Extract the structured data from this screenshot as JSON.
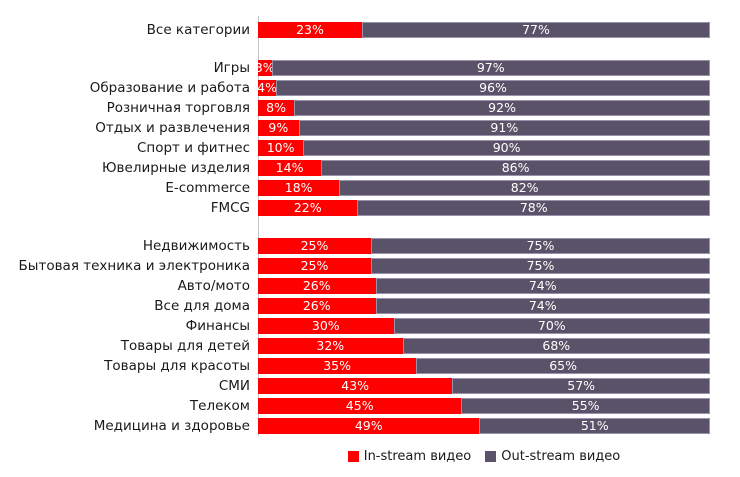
{
  "chart_data": {
    "type": "bar",
    "orientation": "horizontal",
    "stacked": true,
    "unit": "%",
    "x_range": [
      0,
      100
    ],
    "grid": false,
    "legend_position": "bottom-center",
    "colors": {
      "in_stream": "#ff0000",
      "out_stream": "#5a5268",
      "axis_line": "#c6c6c6",
      "label_text": "#1a1a1a",
      "value_text": "#ffffff"
    },
    "series_names": [
      "In-stream видео",
      "Out-stream видео"
    ],
    "groups": [
      {
        "rows": [
          {
            "label": "Все категории",
            "in": 23,
            "out": 77
          }
        ]
      },
      {
        "rows": [
          {
            "label": "Игры",
            "in": 3,
            "out": 97
          },
          {
            "label": "Образование и работа",
            "in": 4,
            "out": 96
          },
          {
            "label": "Розничная торговля",
            "in": 8,
            "out": 92
          },
          {
            "label": "Отдых и развлечения",
            "in": 9,
            "out": 91
          },
          {
            "label": "Спорт и фитнес",
            "in": 10,
            "out": 90
          },
          {
            "label": "Ювелирные изделия",
            "in": 14,
            "out": 86
          },
          {
            "label": "E-commerce",
            "in": 18,
            "out": 82
          },
          {
            "label": "FMCG",
            "in": 22,
            "out": 78
          }
        ]
      },
      {
        "rows": [
          {
            "label": "Недвижимость",
            "in": 25,
            "out": 75
          },
          {
            "label": "Бытовая техника и электроника",
            "in": 25,
            "out": 75
          },
          {
            "label": "Авто/мото",
            "in": 26,
            "out": 74
          },
          {
            "label": "Все для дома",
            "in": 26,
            "out": 74
          },
          {
            "label": "Финансы",
            "in": 30,
            "out": 70
          },
          {
            "label": "Товары для детей",
            "in": 32,
            "out": 68
          },
          {
            "label": "Товары для красоты",
            "in": 35,
            "out": 65
          },
          {
            "label": "СМИ",
            "in": 43,
            "out": 57
          },
          {
            "label": "Телеком",
            "in": 45,
            "out": 55
          },
          {
            "label": "Медицина и здоровье",
            "in": 49,
            "out": 51
          }
        ]
      }
    ],
    "legend": [
      {
        "label": "In-stream видео",
        "color": "#ff0000"
      },
      {
        "label": "Out-stream видео",
        "color": "#5a5268"
      }
    ]
  }
}
